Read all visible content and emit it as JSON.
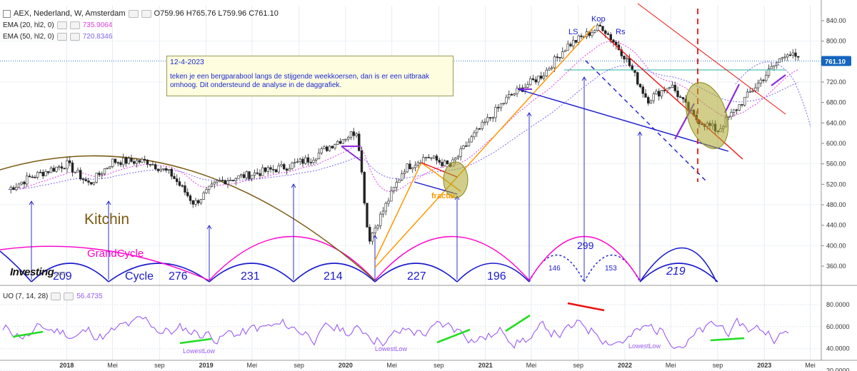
{
  "header": {
    "symbol": "AEX, Nederland, W, Amsterdam",
    "ohlc": "O759.96  H765.76  L759.96  C761.10",
    "ema20_label": "EMA (20, hl2, 0)",
    "ema20_value": "735.9064",
    "ema50_label": "EMA (50, hl2, 0)",
    "ema50_value": "720.8346",
    "uo_label": "UO (7, 14, 28)",
    "uo_value": "56.4735"
  },
  "note": {
    "date": "12-4-2023",
    "text": "teken je een bergparabool langs de stijgende weekkoersen, dan is er een uitbraak omhoog. Dit ondersteund de analyse in de daggrafiek."
  },
  "logo": {
    "name": "Investing",
    "suffix": ".com"
  },
  "colors": {
    "bull": "#26a69a",
    "bear": "#ef5350",
    "candle": "#222222",
    "ema20": "#e040e0",
    "ema50": "#7b68ee",
    "cycle": "#1a1acc",
    "grandcycle": "#ff00cc",
    "kitchin": "#7a5a10",
    "trend_orange": "#ff9900",
    "trend_red": "#ee1111",
    "uo": "#9a5cf0",
    "green": "#22dd22",
    "price_tag": "#1565c0"
  },
  "chart_data": [
    {
      "type": "candlestick",
      "title": "AEX, Nederland, W, Amsterdam",
      "timeframe": "weekly",
      "ylim": [
        360,
        840
      ],
      "y_ticks": [
        360,
        400,
        440,
        480,
        520,
        560,
        600,
        640,
        680,
        720,
        760,
        800,
        840
      ],
      "y_tick_labels": [
        "360.00",
        "400.00",
        "440.00",
        "480.00",
        "520.00",
        "560.00",
        "600.00",
        "640.00",
        "680.00",
        "720.00",
        "760.00",
        "800.00",
        "840.00"
      ],
      "last_price_label": "761.10",
      "x_ticks": [
        "2018",
        "Mei",
        "sep",
        "2019",
        "Mei",
        "sep",
        "2020",
        "Mei",
        "sep",
        "2021",
        "Mei",
        "sep",
        "2022",
        "Mei",
        "sep",
        "2023",
        "Mei"
      ],
      "price_path": [
        [
          "2017-08",
          510
        ],
        [
          "2017-10",
          535
        ],
        [
          "2018-01",
          560
        ],
        [
          "2018-03",
          520
        ],
        [
          "2018-05",
          565
        ],
        [
          "2018-08",
          565
        ],
        [
          "2018-10",
          540
        ],
        [
          "2018-12",
          482
        ],
        [
          "2019-02",
          525
        ],
        [
          "2019-05",
          540
        ],
        [
          "2019-08",
          555
        ],
        [
          "2019-10",
          570
        ],
        [
          "2019-12",
          600
        ],
        [
          "2020-02",
          625
        ],
        [
          "2020-03",
          410
        ],
        [
          "2020-06",
          550
        ],
        [
          "2020-08",
          575
        ],
        [
          "2020-10",
          555
        ],
        [
          "2020-12",
          615
        ],
        [
          "2021-03",
          690
        ],
        [
          "2021-06",
          735
        ],
        [
          "2021-08",
          790
        ],
        [
          "2021-11",
          830
        ],
        [
          "2022-01",
          770
        ],
        [
          "2022-03",
          685
        ],
        [
          "2022-05",
          715
        ],
        [
          "2022-07",
          650
        ],
        [
          "2022-09",
          625
        ],
        [
          "2022-12",
          705
        ],
        [
          "2023-03",
          780
        ],
        [
          "2023-04",
          761
        ]
      ],
      "series": [
        {
          "name": "EMA (20, hl2, 0)",
          "last": 735.9064
        },
        {
          "name": "EMA (50, hl2, 0)",
          "last": 720.8346
        }
      ],
      "annotations": {
        "labels": [
          "Kop",
          "LS",
          "Rs",
          "fractal",
          "Kitchin",
          "GrandCycle",
          "Cycle"
        ],
        "cycle_numbers": [
          "209",
          "276",
          "231",
          "214",
          "227",
          "196",
          "146",
          "299",
          "153",
          "219"
        ]
      }
    },
    {
      "type": "line",
      "title": "UO (7, 14, 28)",
      "ylim": [
        20,
        80
      ],
      "y_ticks": [
        20,
        40,
        60,
        80
      ],
      "y_tick_labels": [
        "20.0000",
        "40.0000",
        "60.0000",
        "80.0000"
      ],
      "last_value": 56.4735,
      "annotations": [
        "LowestLow",
        "LowestLow",
        "LowestLow"
      ]
    }
  ]
}
